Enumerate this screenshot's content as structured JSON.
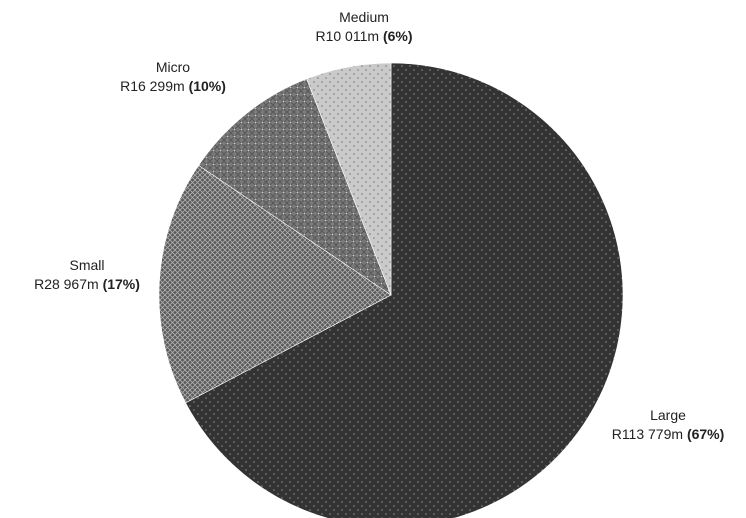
{
  "chart_data": {
    "type": "pie",
    "start_angle_deg": 0,
    "direction": "clockwise",
    "slices": [
      {
        "name": "Large",
        "value": 113779,
        "value_label": "R113 779m",
        "percent": 67,
        "percent_label": "(67%)",
        "fill": "#333333",
        "pattern": "dots-light"
      },
      {
        "name": "Small",
        "value": 28967,
        "value_label": "R28 967m",
        "percent": 17,
        "percent_label": "(17%)",
        "fill": "#555555",
        "pattern": "crosshatch"
      },
      {
        "name": "Micro",
        "value": 16299,
        "value_label": "R16 299m",
        "percent": 10,
        "percent_label": "(10%)",
        "fill": "#777777",
        "pattern": "diamond"
      },
      {
        "name": "Medium",
        "value": 10011,
        "value_label": "R10 011m",
        "percent": 6,
        "percent_label": "(6%)",
        "fill": "#c8c8c8",
        "pattern": "dots-dark"
      }
    ]
  }
}
